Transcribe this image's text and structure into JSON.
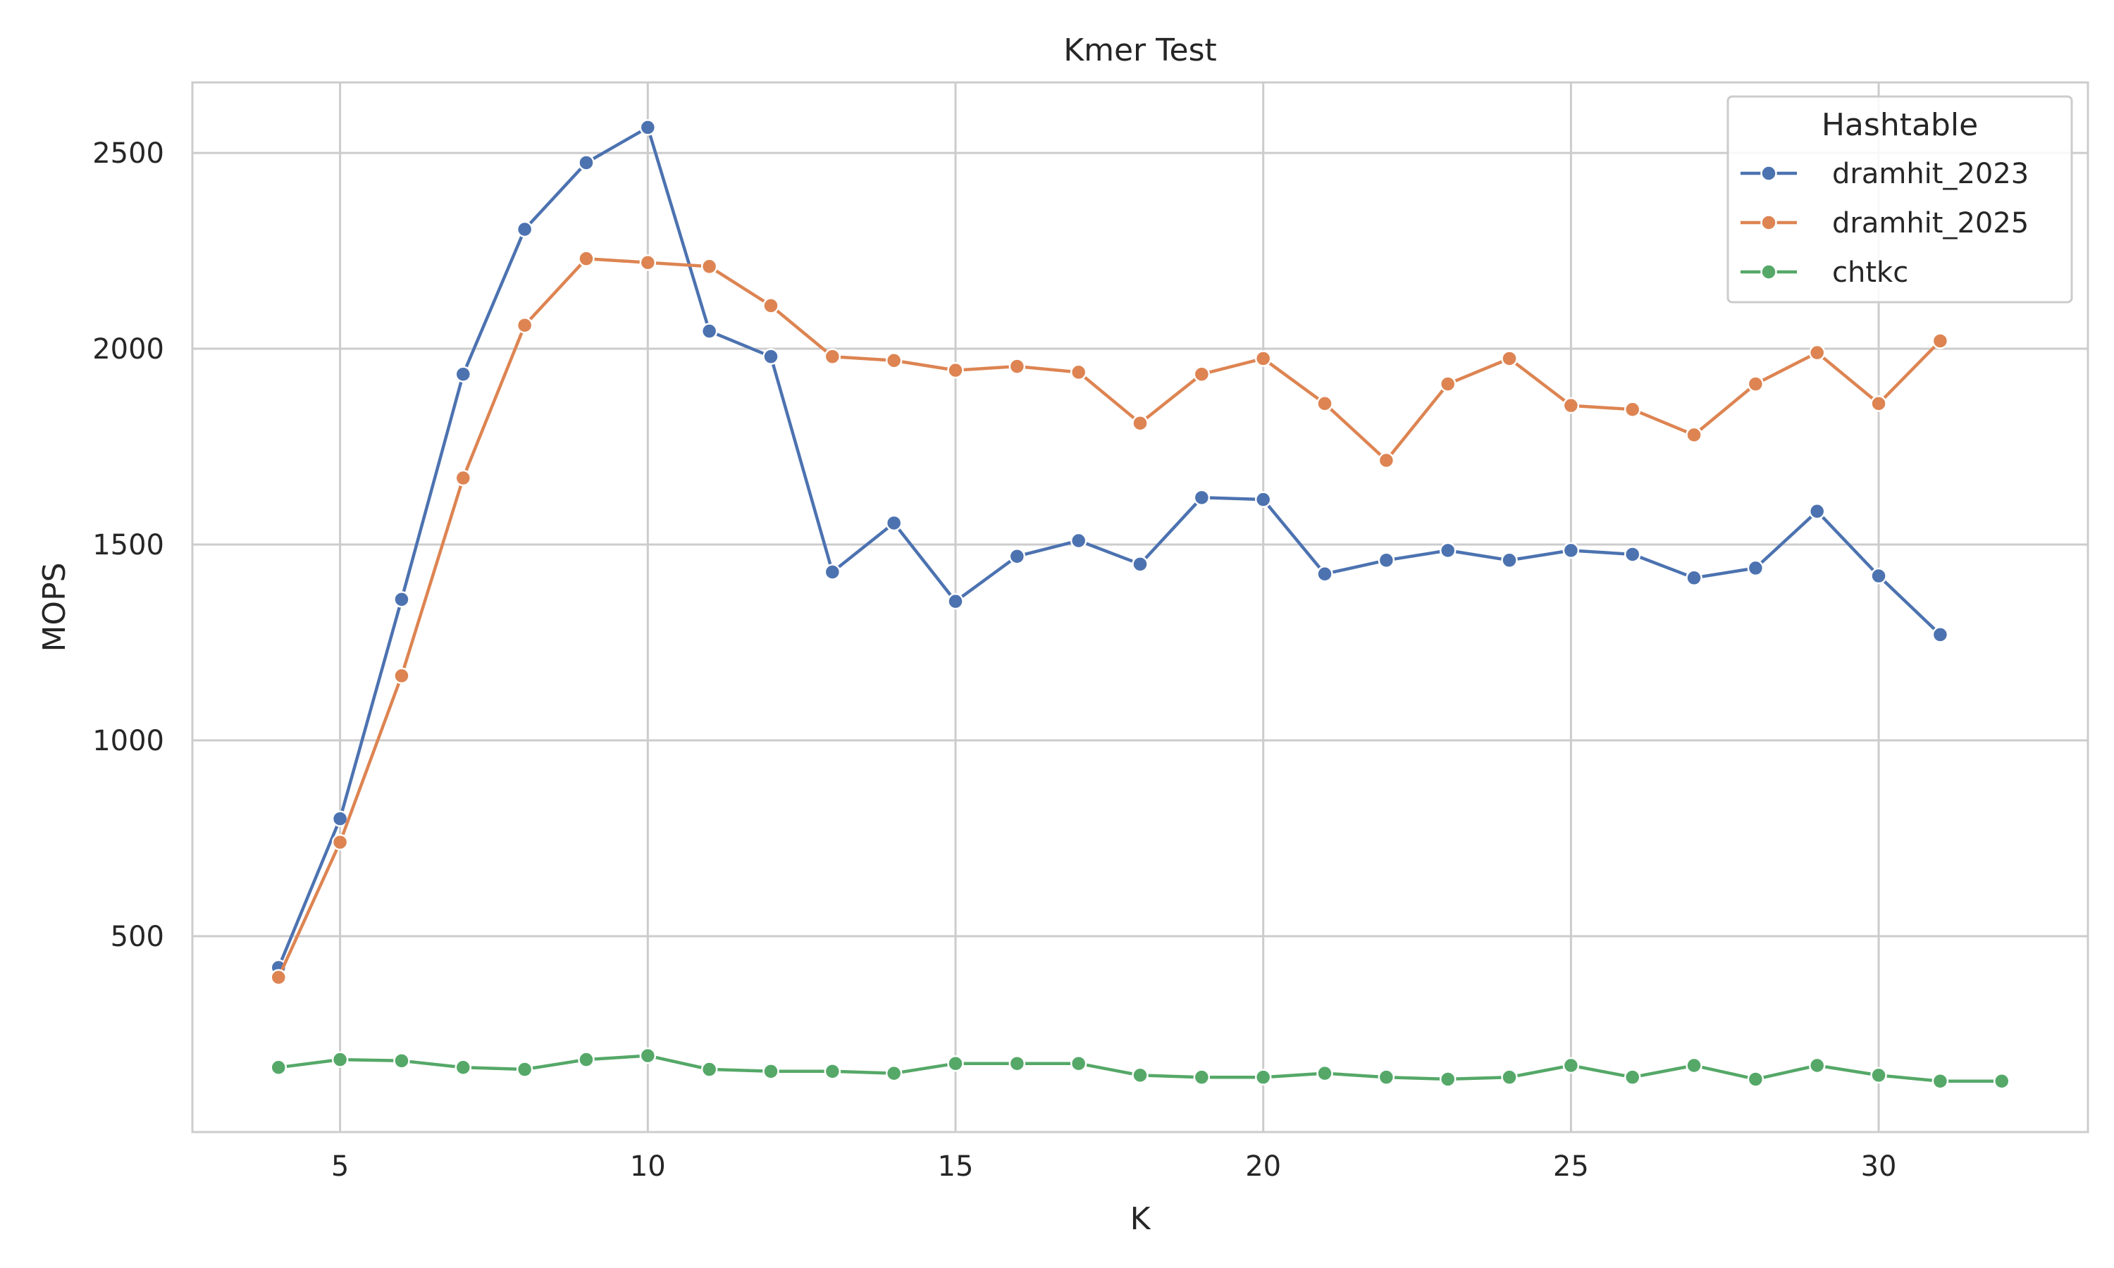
{
  "chart_data": {
    "type": "line",
    "title": "Kmer Test",
    "xlabel": "K",
    "ylabel": "MOPS",
    "xlim": [
      2.6,
      33.4
    ],
    "ylim": [
      0,
      2680
    ],
    "xticks": [
      5,
      10,
      15,
      20,
      25,
      30
    ],
    "yticks": [
      500,
      1000,
      1500,
      2000,
      2500
    ],
    "grid": true,
    "legend": {
      "title": "Hashtable",
      "position": "top-right"
    },
    "series": [
      {
        "name": "dramhit_2023",
        "color": "#4c72b0",
        "x": [
          4,
          5,
          6,
          7,
          8,
          9,
          10,
          11,
          12,
          13,
          14,
          15,
          16,
          17,
          18,
          19,
          20,
          21,
          22,
          23,
          24,
          25,
          26,
          27,
          28,
          29,
          30,
          31
        ],
        "values": [
          420,
          800,
          1360,
          1935,
          2305,
          2475,
          2565,
          2045,
          1980,
          1430,
          1555,
          1355,
          1470,
          1510,
          1450,
          1620,
          1615,
          1425,
          1460,
          1485,
          1460,
          1485,
          1475,
          1415,
          1440,
          1585,
          1420,
          1270
        ]
      },
      {
        "name": "dramhit_2025",
        "color": "#dd8452",
        "x": [
          4,
          5,
          6,
          7,
          8,
          9,
          10,
          11,
          12,
          13,
          14,
          15,
          16,
          17,
          18,
          19,
          20,
          21,
          22,
          23,
          24,
          25,
          26,
          27,
          28,
          29,
          30,
          31
        ],
        "values": [
          395,
          740,
          1165,
          1670,
          2060,
          2230,
          2220,
          2210,
          2110,
          1980,
          1970,
          1945,
          1955,
          1940,
          1810,
          1935,
          1975,
          1860,
          1715,
          1910,
          1975,
          1855,
          1845,
          1780,
          1910,
          1990,
          1860,
          2020
        ]
      },
      {
        "name": "chtkc",
        "color": "#55a868",
        "x": [
          4,
          5,
          6,
          7,
          8,
          9,
          10,
          11,
          12,
          13,
          14,
          15,
          16,
          17,
          18,
          19,
          20,
          21,
          22,
          23,
          24,
          25,
          26,
          27,
          28,
          29,
          30,
          31,
          32
        ],
        "values": [
          165,
          185,
          182,
          165,
          160,
          185,
          195,
          160,
          155,
          155,
          150,
          175,
          175,
          175,
          145,
          140,
          140,
          150,
          140,
          135,
          140,
          170,
          140,
          170,
          135,
          170,
          145,
          130,
          130
        ]
      }
    ]
  }
}
